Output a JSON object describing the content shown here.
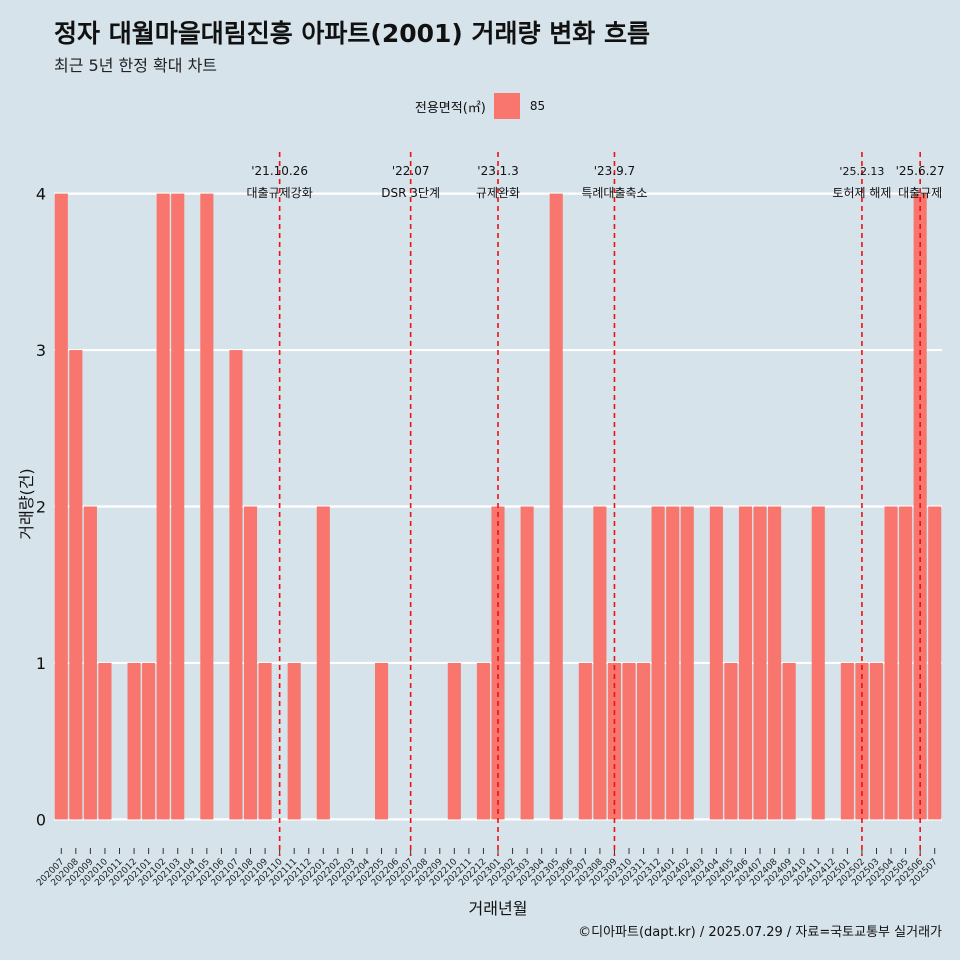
{
  "title": "정자 대월마을대림진흥 아파트(2001) 거래량 변화 흐름",
  "subtitle": "최근 5년 한정 확대 차트",
  "legend": {
    "title": "전용면적(㎡)",
    "label": "85",
    "color": "#f8766d"
  },
  "caption": "©디아파트(dapt.kr) / 2025.07.29 / 자료=국토교통부 실거래가",
  "chart_data": {
    "type": "bar",
    "xlabel": "거래년월",
    "ylabel": "거래량(건)",
    "ylim": [
      -0.17,
      4.33
    ],
    "yticks": [
      0,
      1,
      2,
      3,
      4
    ],
    "grid": true,
    "bar_color": "#f8766d",
    "categories": [
      "202007",
      "202008",
      "202009",
      "202010",
      "202011",
      "202012",
      "202101",
      "202102",
      "202103",
      "202104",
      "202105",
      "202106",
      "202107",
      "202108",
      "202109",
      "202110",
      "202111",
      "202112",
      "202201",
      "202202",
      "202203",
      "202204",
      "202205",
      "202206",
      "202207",
      "202208",
      "202209",
      "202210",
      "202211",
      "202212",
      "202301",
      "202302",
      "202303",
      "202304",
      "202305",
      "202306",
      "202307",
      "202308",
      "202309",
      "202310",
      "202311",
      "202312",
      "202401",
      "202402",
      "202403",
      "202404",
      "202405",
      "202406",
      "202407",
      "202408",
      "202409",
      "202410",
      "202411",
      "202412",
      "202501",
      "202502",
      "202503",
      "202504",
      "202505",
      "202506",
      "202507"
    ],
    "series": [
      {
        "name": "85",
        "values": [
          4,
          3,
          2,
          1,
          0,
          1,
          1,
          4,
          4,
          0,
          4,
          0,
          3,
          2,
          1,
          0,
          1,
          0,
          2,
          0,
          0,
          0,
          1,
          0,
          0,
          0,
          0,
          1,
          0,
          1,
          2,
          0,
          2,
          0,
          4,
          0,
          1,
          2,
          1,
          1,
          1,
          2,
          2,
          2,
          0,
          2,
          1,
          2,
          2,
          2,
          1,
          0,
          2,
          0,
          1,
          1,
          1,
          2,
          2,
          4,
          2
        ]
      }
    ],
    "annotations": [
      {
        "x": "202110",
        "date": "'21.10.26",
        "label": "대출규제강화"
      },
      {
        "x": "202207",
        "date": "'22.07",
        "label": "DSR 3단계"
      },
      {
        "x": "202301",
        "date": "'23.1.3",
        "label": "규제완화"
      },
      {
        "x": "202309",
        "date": "'23.9.7",
        "label": "특례대출축소"
      },
      {
        "x": "202502",
        "date": "'25.2.13",
        "label": "토허제 해제"
      },
      {
        "x": "202506",
        "date": "'25.6.27",
        "label": "대출규제"
      }
    ]
  }
}
